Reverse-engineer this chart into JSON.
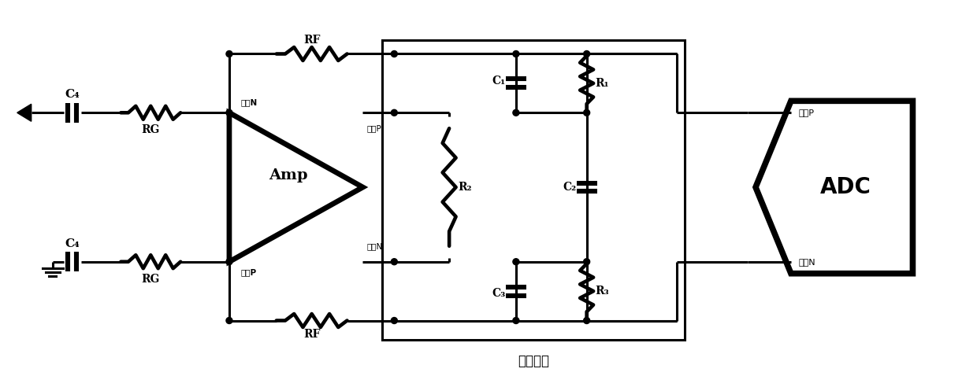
{
  "bg_color": "#ffffff",
  "lc": "#000000",
  "lw": 2.2,
  "fw": 12.4,
  "fh": 4.78,
  "comp_label": "补偿网络",
  "amp_label": "Amp",
  "adc_label": "ADC",
  "C4_label": "C₄",
  "RG_label": "RG",
  "RF_label": "RF",
  "R1_label": "R₁",
  "R2_label": "R₂",
  "R3_label": "R₃",
  "C1_label": "C₁",
  "C2_label": "C₂",
  "C3_label": "C₃",
  "inN_amp": "输入N",
  "inP_amp": "输入P",
  "outP_amp": "输出P",
  "outN_amp": "输出N",
  "inP_adc": "输入P",
  "inN_adc": "输入N"
}
